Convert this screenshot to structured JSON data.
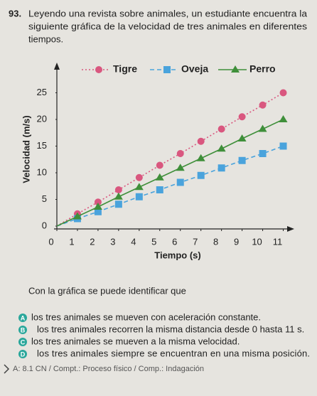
{
  "question": {
    "number": "93.",
    "lines": [
      "Leyendo una revista sobre animales, un estudiante encuentra la",
      "siguiente gráfica de la velocidad de tres animales en diferentes",
      "tiempos."
    ]
  },
  "chart_data": {
    "type": "line",
    "x_label": "Tiempo (s)",
    "y_label": "Velocidad (m/s)",
    "x": [
      0,
      1,
      2,
      3,
      4,
      5,
      6,
      7,
      8,
      9,
      10,
      11
    ],
    "xlim": [
      0,
      11.5
    ],
    "xticks": [
      0,
      1,
      2,
      3,
      4,
      5,
      6,
      7,
      8,
      9,
      10,
      11
    ],
    "ylim": [
      0,
      30
    ],
    "yticks": [
      0,
      5,
      10,
      15,
      20,
      25
    ],
    "grid": false,
    "legend": "top",
    "series": [
      {
        "name": "Tigre",
        "color": "#d9577f",
        "marker": "circle",
        "dash": "dotted",
        "values": [
          0,
          2.3,
          4.5,
          6.8,
          9.1,
          11.4,
          13.6,
          15.9,
          18.2,
          20.5,
          22.7,
          25
        ]
      },
      {
        "name": "Oveja",
        "color": "#4aa3dc",
        "marker": "square",
        "dash": "dashed",
        "values": [
          0,
          1.4,
          2.7,
          4.1,
          5.5,
          6.8,
          8.2,
          9.5,
          10.9,
          12.3,
          13.6,
          15
        ]
      },
      {
        "name": "Perro",
        "color": "#3f8f3a",
        "marker": "triangle",
        "dash": "solid",
        "values": [
          0,
          1.8,
          3.6,
          5.5,
          7.3,
          9.1,
          10.9,
          12.7,
          14.5,
          16.4,
          18.2,
          20
        ]
      }
    ]
  },
  "prompt": "Con la gráfica se puede identificar que",
  "options": [
    {
      "letter": "A",
      "text": "los tres animales se mueven con aceleración constante."
    },
    {
      "letter": "B",
      "text": "los tres animales recorren la misma distancia desde 0 hasta 11 s."
    },
    {
      "letter": "C",
      "text": "los tres animales se mueven a la misma velocidad."
    },
    {
      "letter": "D",
      "text": "los tres animales siempre se encuentran en una misma posición."
    }
  ],
  "footer": "A: 8.1 CN / Compt.: Proceso físico / Comp.: Indagación"
}
